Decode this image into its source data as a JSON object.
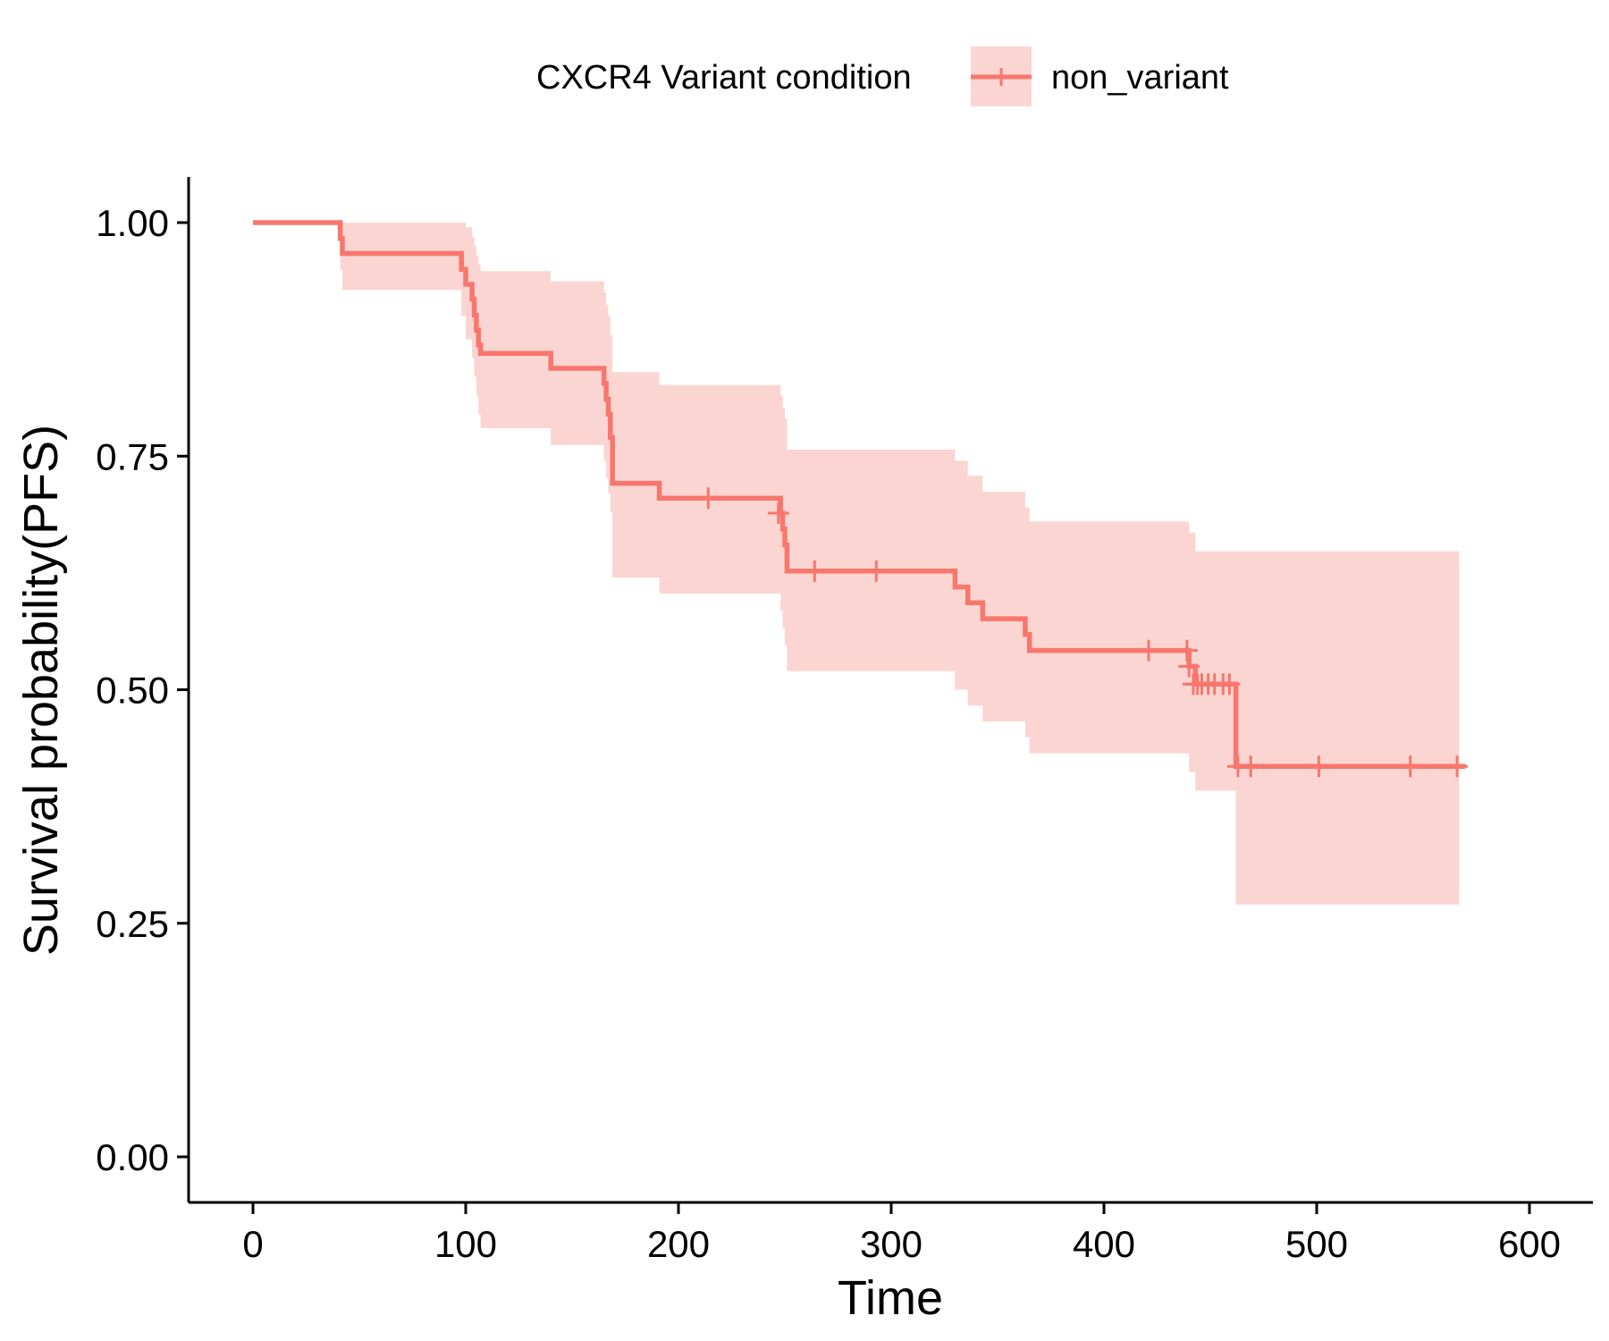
{
  "chart_data": {
    "type": "line",
    "subtype": "kaplan-meier-step",
    "xlabel": "Time",
    "ylabel": "Survival probability(PFS)",
    "xlim": [
      -30,
      630
    ],
    "ylim": [
      -0.05,
      1.05
    ],
    "xticks": [
      0,
      100,
      200,
      300,
      400,
      500,
      600
    ],
    "yticks": [
      0.0,
      0.25,
      0.5,
      0.75,
      1.0
    ],
    "xtick_labels": [
      "0",
      "100",
      "200",
      "300",
      "400",
      "500",
      "600"
    ],
    "ytick_labels": [
      "0.00",
      "0.25",
      "0.50",
      "0.75",
      "1.00"
    ],
    "grid": false,
    "legend": {
      "title": "CXCR4 Variant condition",
      "position": "top",
      "entries": [
        "non_variant"
      ]
    },
    "series": [
      {
        "name": "non_variant",
        "color": "#F8766D",
        "ci_color": "#FBD5D1",
        "steps": [
          {
            "x": 0,
            "y": 1.0,
            "lo": 1.0,
            "hi": 1.0
          },
          {
            "x": 41,
            "y": 0.983,
            "lo": 0.95,
            "hi": 1.0
          },
          {
            "x": 42,
            "y": 0.967,
            "lo": 0.928,
            "hi": 1.0
          },
          {
            "x": 98,
            "y": 0.95,
            "lo": 0.9,
            "hi": 1.0
          },
          {
            "x": 100,
            "y": 0.934,
            "lo": 0.875,
            "hi": 0.995
          },
          {
            "x": 103,
            "y": 0.918,
            "lo": 0.855,
            "hi": 0.985
          },
          {
            "x": 104,
            "y": 0.901,
            "lo": 0.835,
            "hi": 0.975
          },
          {
            "x": 105,
            "y": 0.885,
            "lo": 0.815,
            "hi": 0.965
          },
          {
            "x": 106,
            "y": 0.869,
            "lo": 0.795,
            "hi": 0.955
          },
          {
            "x": 107,
            "y": 0.86,
            "lo": 0.78,
            "hi": 0.948
          },
          {
            "x": 140,
            "y": 0.844,
            "lo": 0.762,
            "hi": 0.937
          },
          {
            "x": 165,
            "y": 0.828,
            "lo": 0.745,
            "hi": 0.925
          },
          {
            "x": 166,
            "y": 0.811,
            "lo": 0.727,
            "hi": 0.912
          },
          {
            "x": 167,
            "y": 0.795,
            "lo": 0.71,
            "hi": 0.9
          },
          {
            "x": 168,
            "y": 0.77,
            "lo": 0.69,
            "hi": 0.88
          },
          {
            "x": 169,
            "y": 0.721,
            "lo": 0.62,
            "hi": 0.84
          },
          {
            "x": 191,
            "y": 0.705,
            "lo": 0.603,
            "hi": 0.826
          },
          {
            "x": 248,
            "y": 0.689,
            "lo": 0.585,
            "hi": 0.815
          },
          {
            "x": 249,
            "y": 0.672,
            "lo": 0.566,
            "hi": 0.802
          },
          {
            "x": 250,
            "y": 0.655,
            "lo": 0.548,
            "hi": 0.79
          },
          {
            "x": 251,
            "y": 0.627,
            "lo": 0.52,
            "hi": 0.757
          },
          {
            "x": 330,
            "y": 0.61,
            "lo": 0.5,
            "hi": 0.745
          },
          {
            "x": 336,
            "y": 0.593,
            "lo": 0.483,
            "hi": 0.729
          },
          {
            "x": 343,
            "y": 0.576,
            "lo": 0.466,
            "hi": 0.712
          },
          {
            "x": 363,
            "y": 0.559,
            "lo": 0.449,
            "hi": 0.695
          },
          {
            "x": 365,
            "y": 0.542,
            "lo": 0.432,
            "hi": 0.68
          },
          {
            "x": 440,
            "y": 0.525,
            "lo": 0.412,
            "hi": 0.668
          },
          {
            "x": 443,
            "y": 0.506,
            "lo": 0.392,
            "hi": 0.648
          },
          {
            "x": 462,
            "y": 0.418,
            "lo": 0.27,
            "hi": 0.648
          }
        ],
        "end_x": 567,
        "censor_points": [
          {
            "x": 214,
            "y": 0.705
          },
          {
            "x": 247,
            "y": 0.689
          },
          {
            "x": 264,
            "y": 0.627
          },
          {
            "x": 293,
            "y": 0.627
          },
          {
            "x": 421,
            "y": 0.542
          },
          {
            "x": 439,
            "y": 0.542
          },
          {
            "x": 440,
            "y": 0.525
          },
          {
            "x": 442,
            "y": 0.506
          },
          {
            "x": 444,
            "y": 0.506
          },
          {
            "x": 446,
            "y": 0.506
          },
          {
            "x": 449,
            "y": 0.506
          },
          {
            "x": 452,
            "y": 0.506
          },
          {
            "x": 456,
            "y": 0.506
          },
          {
            "x": 459,
            "y": 0.506
          },
          {
            "x": 463,
            "y": 0.418
          },
          {
            "x": 469,
            "y": 0.418
          },
          {
            "x": 501,
            "y": 0.418
          },
          {
            "x": 544,
            "y": 0.418
          },
          {
            "x": 566,
            "y": 0.418
          }
        ]
      }
    ]
  }
}
